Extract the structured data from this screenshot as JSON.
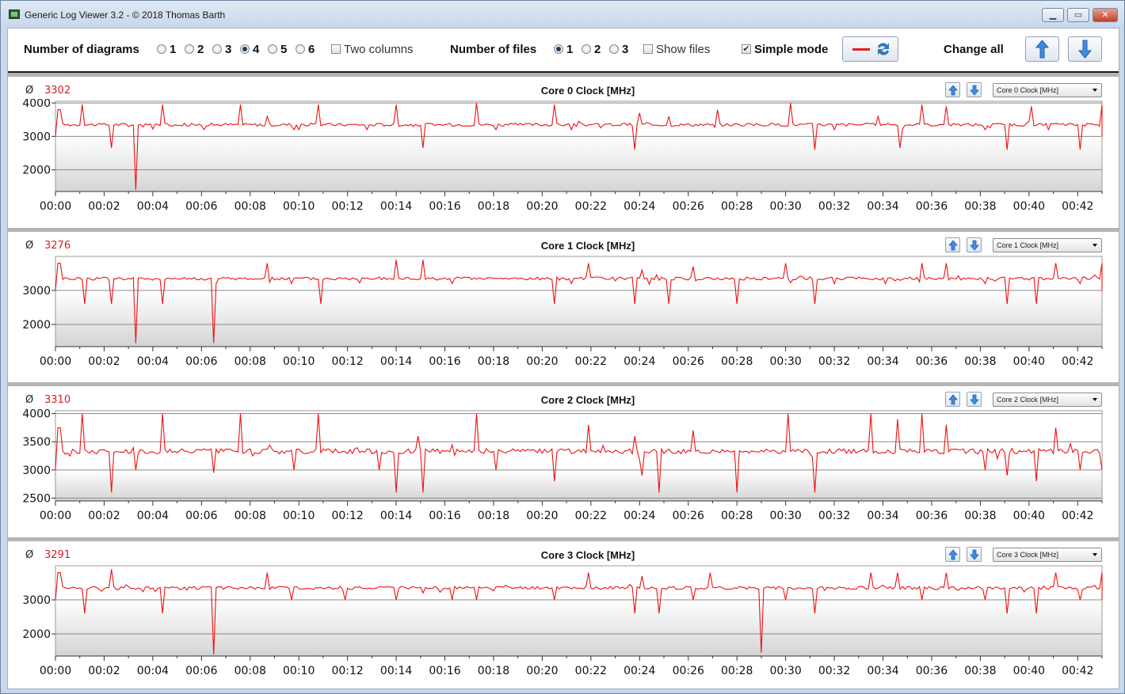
{
  "window": {
    "title": "Generic Log Viewer 3.2 - © 2018 Thomas Barth",
    "buttons": [
      "minimize",
      "maximize",
      "close"
    ]
  },
  "toolbar": {
    "num_diagrams_label": "Number of diagrams",
    "diagram_options": [
      "1",
      "2",
      "3",
      "4",
      "5",
      "6"
    ],
    "diagram_selected": "4",
    "two_columns_label": "Two columns",
    "two_columns_checked": false,
    "num_files_label": "Number of files",
    "file_options": [
      "1",
      "2",
      "3"
    ],
    "file_selected": "1",
    "show_files_label": "Show files",
    "show_files_checked": false,
    "simple_mode_label": "Simple mode",
    "simple_mode_checked": true,
    "change_all_label": "Change all"
  },
  "colors": {
    "series": "#ee1111",
    "avg": "#d42020"
  },
  "panels": [
    {
      "avg_symbol": "Ø",
      "avg": "3302",
      "title": "Core 0 Clock [MHz]",
      "select": "Core 0 Clock [MHz]"
    },
    {
      "avg_symbol": "Ø",
      "avg": "3276",
      "title": "Core 1 Clock [MHz]",
      "select": "Core 1 Clock [MHz]"
    },
    {
      "avg_symbol": "Ø",
      "avg": "3310",
      "title": "Core 2 Clock [MHz]",
      "select": "Core 2 Clock [MHz]"
    },
    {
      "avg_symbol": "Ø",
      "avg": "3291",
      "title": "Core 3 Clock [MHz]",
      "select": "Core 3 Clock [MHz]"
    }
  ],
  "chart_data": [
    {
      "type": "line",
      "title": "Core 0 Clock [MHz]",
      "x_ticks": [
        "00:00",
        "00:02",
        "00:04",
        "00:06",
        "00:08",
        "00:10",
        "00:12",
        "00:14",
        "00:16",
        "00:18",
        "00:20",
        "00:22",
        "00:24",
        "00:26",
        "00:28",
        "00:30",
        "00:32",
        "00:34",
        "00:36",
        "00:38",
        "00:40",
        "00:42"
      ],
      "y_ticks": [
        2000,
        3000,
        4000
      ],
      "ylim": [
        1350,
        4050
      ],
      "xlim_minutes": [
        0,
        43
      ],
      "baseline": 3350,
      "spikes": [
        [
          0.15,
          3800
        ],
        [
          1.1,
          3950
        ],
        [
          2.3,
          2650
        ],
        [
          3.3,
          1400
        ],
        [
          4.4,
          3950
        ],
        [
          6.1,
          3200
        ],
        [
          7.6,
          3950
        ],
        [
          8.7,
          3600
        ],
        [
          9.8,
          3200
        ],
        [
          10.8,
          3950
        ],
        [
          12.8,
          3200
        ],
        [
          14.0,
          3950
        ],
        [
          15.1,
          2650
        ],
        [
          17.3,
          4000
        ],
        [
          18.1,
          3200
        ],
        [
          20.5,
          3950
        ],
        [
          21.2,
          3200
        ],
        [
          23.8,
          2600
        ],
        [
          24.0,
          3700
        ],
        [
          25.2,
          3600
        ],
        [
          27.2,
          3800
        ],
        [
          30.2,
          4000
        ],
        [
          31.2,
          2600
        ],
        [
          32.0,
          3200
        ],
        [
          33.8,
          3600
        ],
        [
          34.7,
          2650
        ],
        [
          35.6,
          3950
        ],
        [
          36.6,
          3900
        ],
        [
          38.2,
          3200
        ],
        [
          39.1,
          2600
        ],
        [
          40.1,
          3900
        ],
        [
          40.8,
          3200
        ],
        [
          42.1,
          2600
        ],
        [
          43.0,
          3950
        ]
      ]
    },
    {
      "type": "line",
      "title": "Core 1 Clock [MHz]",
      "x_ticks": [
        "00:00",
        "00:02",
        "00:04",
        "00:06",
        "00:08",
        "00:10",
        "00:12",
        "00:14",
        "00:16",
        "00:18",
        "00:20",
        "00:22",
        "00:24",
        "00:26",
        "00:28",
        "00:30",
        "00:32",
        "00:34",
        "00:36",
        "00:38",
        "00:40",
        "00:42"
      ],
      "y_ticks": [
        2000,
        3000
      ],
      "ylim": [
        1350,
        4000
      ],
      "xlim_minutes": [
        0,
        43
      ],
      "baseline": 3350,
      "spikes": [
        [
          0.15,
          3800
        ],
        [
          1.2,
          2600
        ],
        [
          2.3,
          2600
        ],
        [
          3.3,
          1450
        ],
        [
          4.4,
          2600
        ],
        [
          6.5,
          1450
        ],
        [
          6.6,
          3200
        ],
        [
          8.7,
          3800
        ],
        [
          9.7,
          3200
        ],
        [
          10.9,
          2600
        ],
        [
          14.0,
          3900
        ],
        [
          15.1,
          3900
        ],
        [
          16.3,
          3200
        ],
        [
          20.5,
          2600
        ],
        [
          21.2,
          3200
        ],
        [
          21.9,
          3800
        ],
        [
          23.8,
          2600
        ],
        [
          24.1,
          3600
        ],
        [
          25.2,
          2600
        ],
        [
          26.2,
          3700
        ],
        [
          28.0,
          2600
        ],
        [
          30.0,
          3800
        ],
        [
          31.2,
          2600
        ],
        [
          32.0,
          3200
        ],
        [
          34.1,
          3200
        ],
        [
          34.7,
          3300
        ],
        [
          35.6,
          3800
        ],
        [
          36.6,
          3800
        ],
        [
          38.2,
          3200
        ],
        [
          39.1,
          2600
        ],
        [
          40.3,
          2600
        ],
        [
          41.1,
          3800
        ],
        [
          42.1,
          3200
        ],
        [
          43.0,
          3800
        ]
      ]
    },
    {
      "type": "line",
      "title": "Core 2 Clock [MHz]",
      "x_ticks": [
        "00:00",
        "00:02",
        "00:04",
        "00:06",
        "00:08",
        "00:10",
        "00:12",
        "00:14",
        "00:16",
        "00:18",
        "00:20",
        "00:22",
        "00:24",
        "00:26",
        "00:28",
        "00:30",
        "00:32",
        "00:34",
        "00:36",
        "00:38",
        "00:40",
        "00:42"
      ],
      "y_ticks": [
        2500,
        3000,
        3500,
        4000
      ],
      "ylim": [
        2450,
        4050
      ],
      "xlim_minutes": [
        0,
        43
      ],
      "baseline": 3330,
      "spikes": [
        [
          0.15,
          3750
        ],
        [
          1.1,
          4000
        ],
        [
          2.3,
          2600
        ],
        [
          3.3,
          3000
        ],
        [
          4.4,
          4000
        ],
        [
          6.5,
          2950
        ],
        [
          7.6,
          4000
        ],
        [
          9.8,
          3000
        ],
        [
          10.8,
          4000
        ],
        [
          13.3,
          3000
        ],
        [
          14.0,
          2600
        ],
        [
          14.9,
          3600
        ],
        [
          15.1,
          2600
        ],
        [
          17.3,
          4000
        ],
        [
          18.1,
          3000
        ],
        [
          20.5,
          2800
        ],
        [
          21.9,
          3800
        ],
        [
          23.8,
          3600
        ],
        [
          24.1,
          2900
        ],
        [
          24.8,
          2600
        ],
        [
          26.2,
          3700
        ],
        [
          28.0,
          2600
        ],
        [
          30.1,
          4000
        ],
        [
          31.2,
          2600
        ],
        [
          33.5,
          4000
        ],
        [
          34.6,
          3900
        ],
        [
          35.6,
          4000
        ],
        [
          36.6,
          3800
        ],
        [
          38.2,
          3000
        ],
        [
          39.1,
          2900
        ],
        [
          40.3,
          2800
        ],
        [
          41.1,
          3750
        ],
        [
          42.1,
          3000
        ],
        [
          43.0,
          3000
        ]
      ]
    },
    {
      "type": "line",
      "title": "Core 3 Clock [MHz]",
      "x_ticks": [
        "00:00",
        "00:02",
        "00:04",
        "00:06",
        "00:08",
        "00:10",
        "00:12",
        "00:14",
        "00:16",
        "00:18",
        "00:20",
        "00:22",
        "00:24",
        "00:26",
        "00:28",
        "00:30",
        "00:32",
        "00:34",
        "00:36",
        "00:38",
        "00:40",
        "00:42"
      ],
      "y_ticks": [
        2000,
        3000
      ],
      "ylim": [
        1350,
        4000
      ],
      "xlim_minutes": [
        0,
        43
      ],
      "baseline": 3350,
      "spikes": [
        [
          0.15,
          3800
        ],
        [
          1.2,
          2600
        ],
        [
          2.3,
          3900
        ],
        [
          4.4,
          2600
        ],
        [
          6.5,
          1400
        ],
        [
          8.7,
          3800
        ],
        [
          9.7,
          3000
        ],
        [
          11.9,
          3000
        ],
        [
          14.0,
          3000
        ],
        [
          15.1,
          3200
        ],
        [
          16.3,
          3000
        ],
        [
          17.3,
          3000
        ],
        [
          20.5,
          3000
        ],
        [
          21.9,
          3800
        ],
        [
          23.8,
          2600
        ],
        [
          24.1,
          3700
        ],
        [
          24.8,
          2600
        ],
        [
          26.2,
          3000
        ],
        [
          26.9,
          3800
        ],
        [
          29.0,
          1450
        ],
        [
          30.0,
          3000
        ],
        [
          31.2,
          2600
        ],
        [
          33.5,
          3800
        ],
        [
          34.6,
          3800
        ],
        [
          35.6,
          3000
        ],
        [
          36.6,
          3800
        ],
        [
          38.2,
          3000
        ],
        [
          39.1,
          2600
        ],
        [
          40.3,
          2600
        ],
        [
          41.1,
          3800
        ],
        [
          42.1,
          3000
        ],
        [
          43.0,
          3800
        ]
      ]
    }
  ]
}
